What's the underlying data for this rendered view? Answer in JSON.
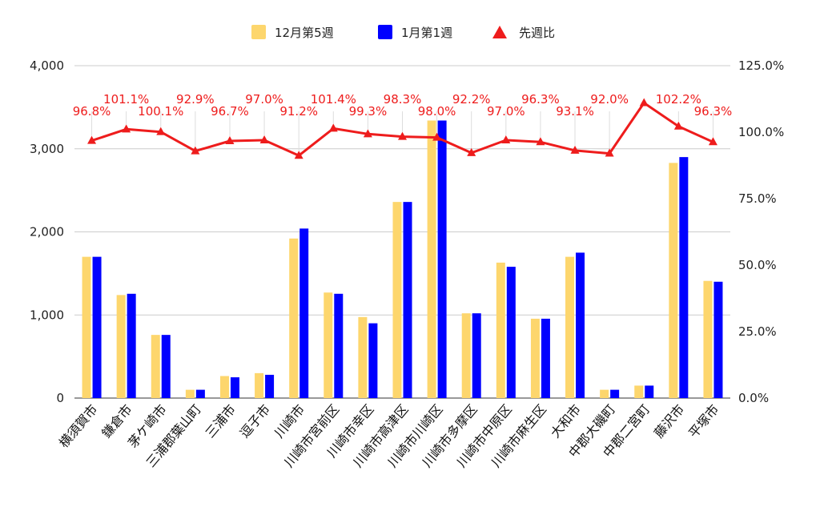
{
  "chart_data": {
    "type": "bar",
    "categories": [
      "横須賀市",
      "鎌倉市",
      "茅ケ崎市",
      "三浦郡葉山町",
      "三浦市",
      "逗子市",
      "川崎市",
      "川崎市宮前区",
      "川崎市幸区",
      "川崎市高津区",
      "川崎市川崎区",
      "川崎市多摩区",
      "川崎市中原区",
      "川崎市麻生区",
      "大和市",
      "中郡大磯町",
      "中郡二宮町",
      "藤沢市",
      "平塚市"
    ],
    "series": [
      {
        "name": "12月第5週",
        "type": "bar",
        "axis": "left",
        "color": "#fdd66d",
        "values": [
          1700,
          1240,
          760,
          100,
          265,
          300,
          1920,
          1270,
          975,
          2360,
          3340,
          1020,
          1630,
          955,
          1700,
          100,
          150,
          2830,
          1410
        ]
      },
      {
        "name": "1月第1週",
        "type": "bar",
        "axis": "left",
        "color": "#0000ff",
        "values": [
          1700,
          1255,
          760,
          100,
          250,
          280,
          2040,
          1255,
          900,
          2360,
          3340,
          1020,
          1580,
          955,
          1750,
          100,
          150,
          2900,
          1400
        ]
      },
      {
        "name": "先週比",
        "type": "line",
        "axis": "right",
        "color": "#ee1c1c",
        "marker": "triangle",
        "values": [
          96.8,
          101.1,
          100.1,
          92.9,
          96.7,
          97.0,
          91.2,
          101.4,
          99.3,
          98.3,
          98.0,
          92.2,
          97.0,
          96.3,
          93.1,
          92.0,
          111.0,
          102.2,
          96.3
        ],
        "labels": [
          "96.8%",
          "101.1%",
          "100.1%",
          "92.9%",
          "96.7%",
          "97.0%",
          "91.2%",
          "101.4%",
          "99.3%",
          "98.3%",
          "98.0%",
          "92.2%",
          "97.0%",
          "96.3%",
          "93.1%",
          "92.0%",
          "",
          "102.2%",
          "96.3%"
        ]
      }
    ],
    "y_left": {
      "ylim": [
        0,
        4000
      ],
      "ticks": [
        0,
        1000,
        2000,
        3000,
        4000
      ],
      "tick_labels": [
        "0",
        "1,000",
        "2,000",
        "3,000",
        "4,000"
      ]
    },
    "y_right": {
      "ylim": [
        0,
        125
      ],
      "ticks": [
        0,
        25,
        50,
        75,
        100,
        125
      ],
      "tick_labels": [
        "0.0%",
        "25.0%",
        "50.0%",
        "75.0%",
        "100.0%",
        "125.0%"
      ]
    },
    "grid": true,
    "legend_position": "top-center"
  }
}
